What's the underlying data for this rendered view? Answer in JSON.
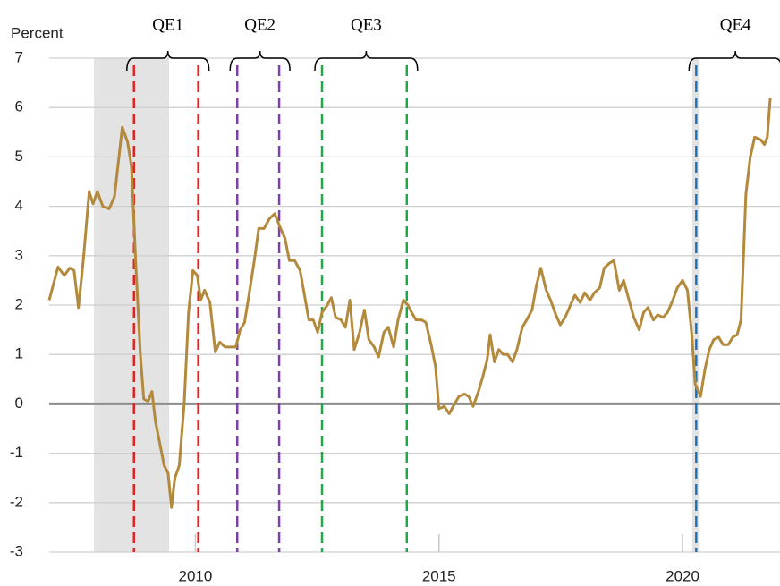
{
  "chart_data": {
    "type": "line",
    "y_label": "Percent",
    "xlim": [
      2007,
      2022
    ],
    "xticks": [
      2010,
      2015,
      2020
    ],
    "ylim": [
      -3,
      7
    ],
    "yticks": [
      -3,
      -2,
      -1,
      0,
      1,
      2,
      3,
      4,
      5,
      6,
      7
    ],
    "grid": true,
    "color": "#b38a3c",
    "x": [
      2007.0,
      2007.18,
      2007.31,
      2007.42,
      2007.51,
      2007.6,
      2007.7,
      2007.82,
      2007.9,
      2007.99,
      2008.1,
      2008.23,
      2008.34,
      2008.5,
      2008.61,
      2008.69,
      2008.78,
      2008.87,
      2008.94,
      2009.03,
      2009.11,
      2009.18,
      2009.29,
      2009.36,
      2009.44,
      2009.51,
      2009.58,
      2009.67,
      2009.77,
      2009.86,
      2009.95,
      2010.04,
      2010.11,
      2010.19,
      2010.3,
      2010.41,
      2010.5,
      2010.61,
      2010.72,
      2010.83,
      2010.92,
      2011.01,
      2011.1,
      2011.21,
      2011.3,
      2011.41,
      2011.52,
      2011.63,
      2011.73,
      2011.84,
      2011.93,
      2012.04,
      2012.15,
      2012.24,
      2012.33,
      2012.42,
      2012.51,
      2012.6,
      2012.71,
      2012.79,
      2012.88,
      2012.99,
      2013.08,
      2013.17,
      2013.26,
      2013.37,
      2013.47,
      2013.56,
      2013.67,
      2013.76,
      2013.87,
      2013.96,
      2014.07,
      2014.16,
      2014.27,
      2014.36,
      2014.44,
      2014.53,
      2014.64,
      2014.73,
      2014.84,
      2014.93,
      2015.0,
      2015.11,
      2015.21,
      2015.32,
      2015.41,
      2015.52,
      2015.61,
      2015.7,
      2015.81,
      2015.9,
      2015.99,
      2016.05,
      2016.14,
      2016.23,
      2016.32,
      2016.41,
      2016.51,
      2016.6,
      2016.71,
      2016.8,
      2016.91,
      2017.0,
      2017.09,
      2017.2,
      2017.29,
      2017.4,
      2017.49,
      2017.59,
      2017.7,
      2017.79,
      2017.9,
      2017.99,
      2018.1,
      2018.19,
      2018.3,
      2018.39,
      2018.5,
      2018.59,
      2018.7,
      2018.79,
      2018.9,
      2019.0,
      2019.11,
      2019.2,
      2019.29,
      2019.4,
      2019.49,
      2019.6,
      2019.69,
      2019.8,
      2019.89,
      2020.0,
      2020.1,
      2020.19,
      2020.26,
      2020.37,
      2020.46,
      2020.55,
      2020.64,
      2020.74,
      2020.83,
      2020.94,
      2021.03,
      2021.12,
      2021.2,
      2021.3,
      2021.39,
      2021.48,
      2021.6,
      2021.68,
      2021.74,
      2021.8
    ],
    "values": [
      2.1,
      2.77,
      2.6,
      2.75,
      2.7,
      1.95,
      2.9,
      4.3,
      4.05,
      4.3,
      4.0,
      3.95,
      4.2,
      5.6,
      5.3,
      4.8,
      2.75,
      1.0,
      0.1,
      0.05,
      0.25,
      -0.35,
      -0.9,
      -1.25,
      -1.4,
      -2.1,
      -1.5,
      -1.25,
      0,
      1.85,
      2.7,
      2.6,
      2.1,
      2.3,
      2.05,
      1.05,
      1.25,
      1.15,
      1.15,
      1.15,
      1.5,
      1.65,
      2.2,
      2.9,
      3.55,
      3.55,
      3.75,
      3.85,
      3.6,
      3.35,
      2.9,
      2.9,
      2.7,
      2.2,
      1.7,
      1.7,
      1.45,
      1.85,
      2.0,
      2.15,
      1.75,
      1.7,
      1.55,
      2.1,
      1.1,
      1.45,
      1.9,
      1.3,
      1.15,
      0.95,
      1.45,
      1.55,
      1.15,
      1.7,
      2.1,
      2.0,
      1.85,
      1.7,
      1.7,
      1.65,
      1.2,
      0.75,
      -0.1,
      -0.05,
      -0.2,
      0,
      0.15,
      0.2,
      0.15,
      -0.05,
      0.25,
      0.55,
      0.9,
      1.4,
      0.85,
      1.1,
      1.0,
      1.0,
      0.85,
      1.1,
      1.55,
      1.7,
      1.9,
      2.4,
      2.75,
      2.3,
      2.1,
      1.8,
      1.6,
      1.75,
      2.0,
      2.2,
      2.05,
      2.25,
      2.1,
      2.25,
      2.35,
      2.75,
      2.85,
      2.9,
      2.3,
      2.5,
      2.1,
      1.75,
      1.5,
      1.85,
      1.95,
      1.7,
      1.8,
      1.75,
      1.85,
      2.1,
      2.35,
      2.5,
      2.3,
      1.4,
      0.4,
      0.15,
      0.7,
      1.1,
      1.3,
      1.35,
      1.2,
      1.2,
      1.35,
      1.4,
      1.7,
      4.25,
      5.0,
      5.4,
      5.35,
      5.25,
      5.4,
      6.2
    ],
    "recessions": [
      {
        "start": 2007.92,
        "end": 2009.46
      },
      {
        "start": 2020.2,
        "end": 2020.35
      }
    ],
    "annotations": [
      {
        "label": "QE1",
        "start": 2008.74,
        "end": 2010.06,
        "color": "#e32222"
      },
      {
        "label": "QE2",
        "start": 2010.86,
        "end": 2011.72,
        "color": "#7d42a8"
      },
      {
        "label": "QE3",
        "start": 2012.6,
        "end": 2014.34,
        "color": "#22a64a"
      },
      {
        "label": "QE4",
        "start": 2020.28,
        "color": "#1f72b8"
      }
    ]
  }
}
